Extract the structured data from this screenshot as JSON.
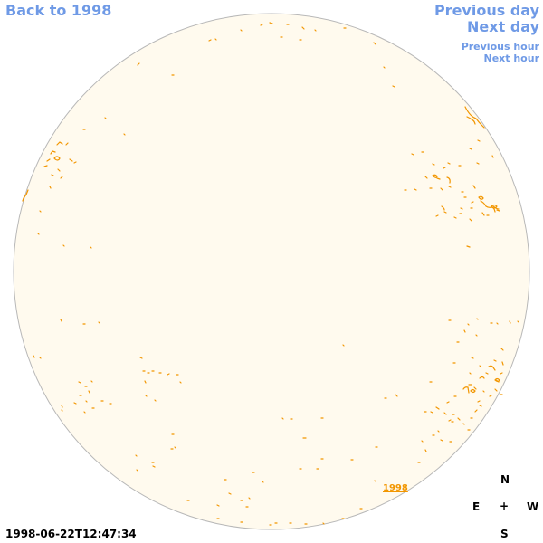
{
  "nav": {
    "back_label": "Back to 1998",
    "previous_day_label": "Previous day",
    "next_day_label": "Next day",
    "previous_hour_label": "Previous hour",
    "next_hour_label": "Next hour"
  },
  "footer": {
    "timestamp": "1998-06-22T12:47:34",
    "year_label": "1998"
  },
  "compass": {
    "north": "N",
    "east": "E",
    "center": "+",
    "west": "W",
    "south": "S"
  },
  "colors": {
    "link": "#6f9ae6",
    "disc_fill": "#fffaee",
    "disc_stroke": "#b8b8b8",
    "contour": "#f29600"
  }
}
